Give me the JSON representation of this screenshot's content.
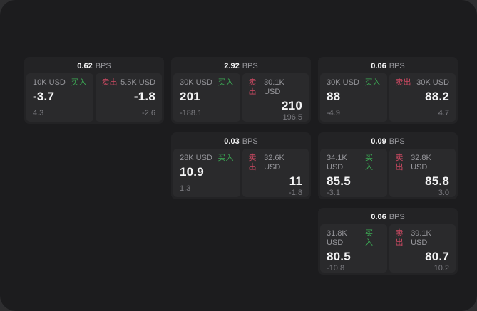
{
  "colors": {
    "outer_bg": "#2e2e30",
    "page_bg": "#1c1c1e",
    "card_bg": "#232325",
    "panel_bg": "#2a2a2c",
    "buy_green": "#3cab55",
    "sell_red": "#cf4a63",
    "value_text": "#f4f4f5",
    "label_text": "#97979c",
    "muted_text": "#7a7a7f"
  },
  "labels": {
    "bps_unit": "BPS",
    "buy": "买入",
    "sell": "卖出"
  },
  "cards": [
    {
      "bps": "0.62",
      "buy": {
        "amount": "10K USD",
        "value": "-3.7",
        "delta": "4.3"
      },
      "sell": {
        "amount": "5.5K USD",
        "value": "-1.8",
        "delta": "-2.6"
      }
    },
    {
      "bps": "2.92",
      "buy": {
        "amount": "30K USD",
        "value": "201",
        "delta": "-188.1"
      },
      "sell": {
        "amount": "30.1K USD",
        "value": "210",
        "delta": "196.5"
      }
    },
    {
      "bps": "0.06",
      "buy": {
        "amount": "30K USD",
        "value": "88",
        "delta": "-4.9"
      },
      "sell": {
        "amount": "30K USD",
        "value": "88.2",
        "delta": "4.7"
      }
    },
    {
      "bps": "0.03",
      "buy": {
        "amount": "28K USD",
        "value": "10.9",
        "delta": "1.3"
      },
      "sell": {
        "amount": "32.6K USD",
        "value": "11",
        "delta": "-1.8"
      }
    },
    {
      "bps": "0.09",
      "buy": {
        "amount": "34.1K USD",
        "value": "85.5",
        "delta": "-3.1"
      },
      "sell": {
        "amount": "32.8K USD",
        "value": "85.8",
        "delta": "3.0"
      }
    },
    {
      "bps": "0.06",
      "buy": {
        "amount": "31.8K USD",
        "value": "80.5",
        "delta": "-10.8"
      },
      "sell": {
        "amount": "39.1K USD",
        "value": "80.7",
        "delta": "10.2"
      }
    }
  ]
}
